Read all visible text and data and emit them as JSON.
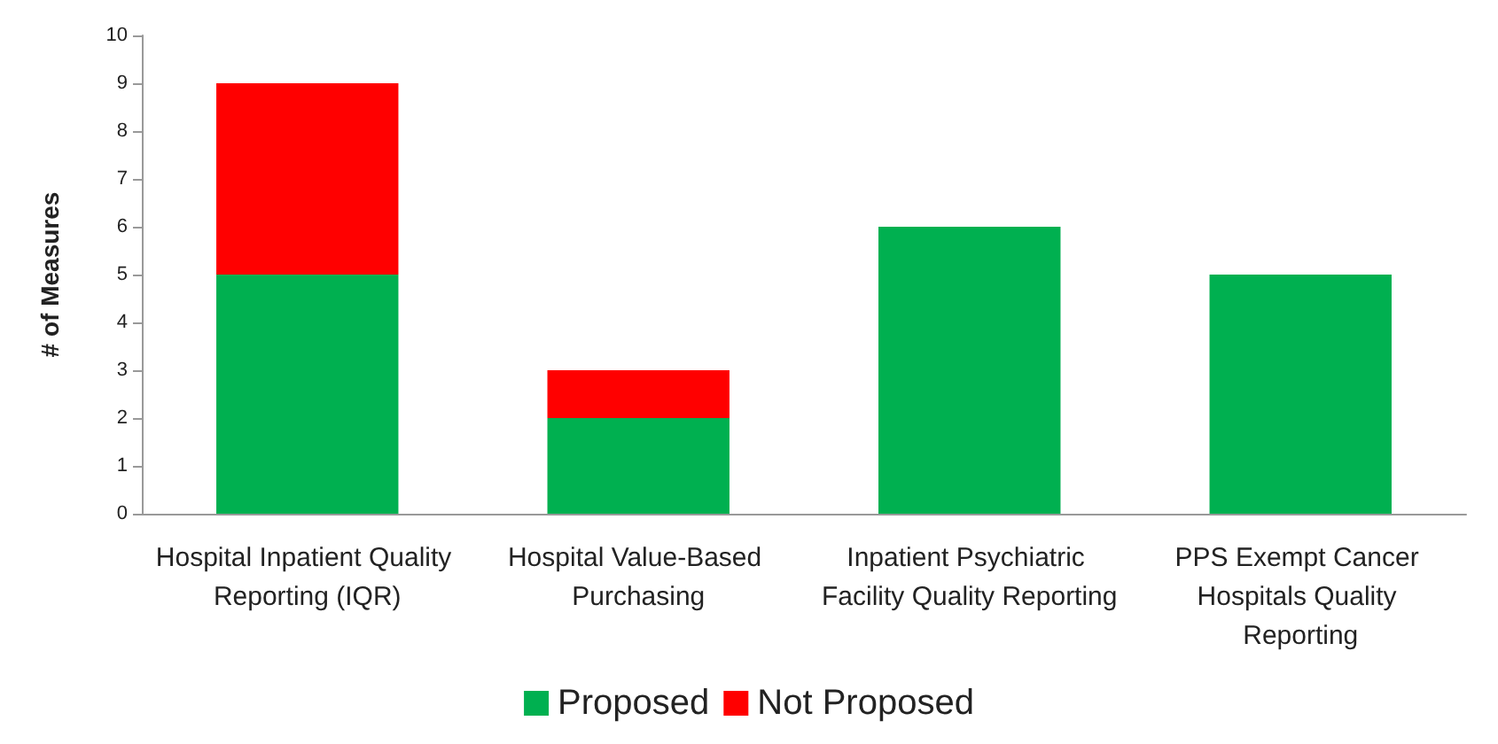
{
  "chart_data": {
    "type": "bar",
    "ylabel": "# of Measures",
    "categories": [
      "Hospital Inpatient Quality Reporting (IQR)",
      "Hospital Value-Based Purchasing",
      "Inpatient Psychiatric Facility Quality Reporting",
      "PPS Exempt Cancer Hospitals Quality Reporting"
    ],
    "series": [
      {
        "name": "Proposed",
        "color": "#00b050",
        "values": [
          5,
          2,
          6,
          5
        ]
      },
      {
        "name": "Not Proposed",
        "color": "#ff0000",
        "values": [
          4,
          1,
          0,
          0
        ]
      }
    ],
    "stacked": true,
    "ylim": [
      0,
      10
    ],
    "yticks": [
      0,
      1,
      2,
      3,
      4,
      5,
      6,
      7,
      8,
      9,
      10
    ],
    "grid": false,
    "legend": "bottom"
  }
}
